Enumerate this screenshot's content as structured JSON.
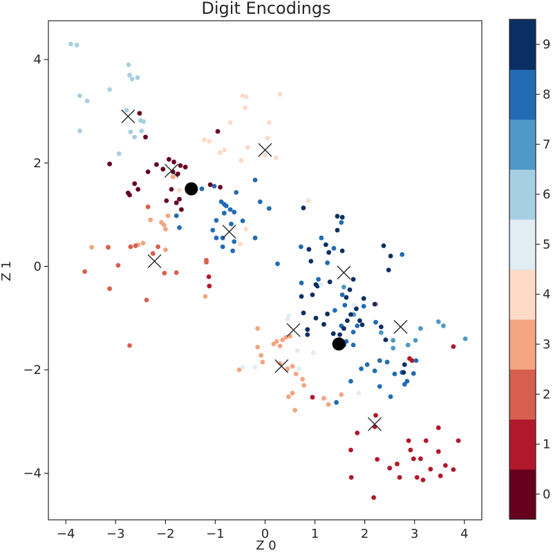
{
  "chart_data": {
    "type": "scatter",
    "title": "Digit Encodings",
    "xlabel": "Z 0",
    "ylabel": "Z 1",
    "xlim": [
      -4.35,
      4.35
    ],
    "ylim": [
      -4.9,
      4.75
    ],
    "xticks": [
      -4,
      -3,
      -2,
      -1,
      0,
      1,
      2,
      3,
      4
    ],
    "yticks": [
      4,
      2,
      0,
      -2,
      -4
    ],
    "xtick_labels": [
      "−4",
      "−3",
      "−2",
      "−1",
      "0",
      "1",
      "2",
      "3",
      "4"
    ],
    "ytick_labels": [
      "4",
      "2",
      "0",
      "−2",
      "−4"
    ],
    "colorbar": {
      "ticks": [
        "0",
        "1",
        "2",
        "3",
        "4",
        "5",
        "6",
        "7",
        "8",
        "9"
      ],
      "colors": [
        "#67001f",
        "#b2182b",
        "#d6604d",
        "#f4a582",
        "#fddbc7",
        "#e1ecf3",
        "#a7cfe4",
        "#4e98c8",
        "#236bb3",
        "#0b2f63"
      ]
    },
    "points": [
      [
        -3.9,
        4.3,
        6
      ],
      [
        -3.78,
        4.28,
        6
      ],
      [
        -3.72,
        3.3,
        6
      ],
      [
        -3.72,
        2.62,
        6
      ],
      [
        -3.57,
        3.2,
        6
      ],
      [
        -3.12,
        3.42,
        6
      ],
      [
        -2.93,
        2.18,
        6
      ],
      [
        -2.74,
        3.9,
        6
      ],
      [
        -2.7,
        2.6,
        6
      ],
      [
        -2.72,
        3.7,
        6
      ],
      [
        -2.67,
        3.62,
        6
      ],
      [
        -2.56,
        3.65,
        6
      ],
      [
        -2.62,
        2.5,
        6
      ],
      [
        -2.5,
        2.82,
        6
      ],
      [
        -2.44,
        2.8,
        6
      ],
      [
        -2.48,
        2.62,
        6
      ],
      [
        -2.78,
        3.02,
        6
      ],
      [
        -2.52,
        2.96,
        0
      ],
      [
        -2.4,
        2.5,
        0
      ],
      [
        -3.12,
        1.98,
        0
      ],
      [
        -2.75,
        1.42,
        0
      ],
      [
        -2.62,
        1.6,
        0
      ],
      [
        -2.55,
        1.49,
        0
      ],
      [
        -2.35,
        1.83,
        0
      ],
      [
        -2.18,
        1.97,
        0
      ],
      [
        -2.05,
        1.88,
        0
      ],
      [
        -1.93,
        2.07,
        0
      ],
      [
        -1.83,
        2.02,
        0
      ],
      [
        -1.85,
        1.83,
        0
      ],
      [
        -1.88,
        1.49,
        0
      ],
      [
        -1.78,
        1.23,
        0
      ],
      [
        -1.72,
        1.3,
        0
      ],
      [
        -1.68,
        1.1,
        0
      ],
      [
        -1.75,
        1.79,
        0
      ],
      [
        -1.98,
        1.27,
        0
      ],
      [
        -1.7,
        1.95,
        0
      ],
      [
        -1.6,
        1.92,
        0
      ],
      [
        -0.95,
        2.61,
        0
      ],
      [
        -0.9,
        1.53,
        0
      ],
      [
        -1.1,
        1.58,
        0
      ],
      [
        -2.72,
        1.38,
        0
      ],
      [
        -0.82,
        2.25,
        4
      ],
      [
        -0.7,
        2.78,
        4
      ],
      [
        -0.45,
        3.3,
        4
      ],
      [
        -0.38,
        3.28,
        4
      ],
      [
        -0.4,
        3.07,
        4
      ],
      [
        -1.22,
        2.45,
        4
      ],
      [
        -1.12,
        2.42,
        4
      ],
      [
        -0.9,
        2.2,
        4
      ],
      [
        -0.48,
        2.05,
        4
      ],
      [
        -0.35,
        2.3,
        4
      ],
      [
        0.0,
        2.15,
        4
      ],
      [
        0.05,
        2.48,
        4
      ],
      [
        0.22,
        2.1,
        4
      ],
      [
        0.08,
        2.78,
        4
      ],
      [
        0.3,
        3.33,
        4
      ],
      [
        0.87,
        1.27,
        4
      ],
      [
        -0.5,
        0.43,
        4
      ],
      [
        -0.38,
        0.72,
        4
      ],
      [
        -1.72,
        1.47,
        4
      ],
      [
        -2.0,
        0.72,
        3
      ],
      [
        -2.08,
        0.85,
        3
      ],
      [
        -2.03,
        0.8,
        3
      ],
      [
        -2.3,
        0.9,
        3
      ],
      [
        -1.95,
        0.98,
        3
      ],
      [
        -1.85,
        1.73,
        3
      ],
      [
        -3.48,
        0.37,
        3
      ],
      [
        -2.55,
        0.42,
        3
      ],
      [
        -2.45,
        0.45,
        3
      ],
      [
        -2.0,
        0.32,
        3
      ],
      [
        -1.2,
        -0.58,
        3
      ],
      [
        -0.52,
        -2.0,
        3
      ],
      [
        -0.15,
        -1.2,
        3
      ],
      [
        0.17,
        -1.5,
        3
      ],
      [
        0.23,
        -1.45,
        3
      ],
      [
        0.3,
        -1.88,
        3
      ],
      [
        0.35,
        -1.42,
        3
      ],
      [
        0.42,
        -1.37,
        3
      ],
      [
        0.5,
        -1.35,
        3
      ],
      [
        0.45,
        -1.98,
        3
      ],
      [
        0.55,
        -1.93,
        3
      ],
      [
        0.62,
        -2.08,
        3
      ],
      [
        0.55,
        -2.45,
        3
      ],
      [
        0.75,
        -2.18,
        3
      ],
      [
        0.78,
        -2.3,
        3
      ],
      [
        0.47,
        -2.52,
        3
      ],
      [
        1.18,
        -2.55,
        3
      ],
      [
        1.27,
        -2.67,
        3
      ],
      [
        1.53,
        -2.48,
        3
      ],
      [
        0.6,
        -2.78,
        3
      ],
      [
        -0.08,
        -1.72,
        3
      ],
      [
        -0.05,
        -1.85,
        3
      ],
      [
        2.23,
        -0.73,
        3
      ],
      [
        0.3,
        -1.54,
        3
      ],
      [
        -0.15,
        -1.56,
        3
      ],
      [
        -3.62,
        -0.1,
        2
      ],
      [
        -3.15,
        0.37,
        2
      ],
      [
        -3.12,
        -0.43,
        2
      ],
      [
        -2.95,
        0.02,
        2
      ],
      [
        -2.7,
        0.38,
        2
      ],
      [
        -2.6,
        0.4,
        2
      ],
      [
        -2.35,
        1.15,
        2
      ],
      [
        -2.25,
        0.25,
        2
      ],
      [
        -2.02,
        -0.13,
        2
      ],
      [
        -2.38,
        -0.65,
        2
      ],
      [
        -1.78,
        -0.12,
        2
      ],
      [
        -1.18,
        0.08,
        2
      ],
      [
        -2.72,
        -1.53,
        2
      ],
      [
        -1.18,
        0.12,
        2
      ],
      [
        -2.15,
        0.38,
        2
      ],
      [
        -1.13,
        -0.2,
        1
      ],
      [
        -1.12,
        -0.38,
        1
      ],
      [
        0.95,
        -2.53,
        1
      ],
      [
        2.22,
        -2.88,
        1
      ],
      [
        2.2,
        -3.1,
        1
      ],
      [
        1.85,
        -3.22,
        1
      ],
      [
        1.72,
        -3.55,
        1
      ],
      [
        2.25,
        -3.73,
        1
      ],
      [
        1.73,
        -4.08,
        1
      ],
      [
        2.18,
        -4.47,
        1
      ],
      [
        2.5,
        -3.9,
        1
      ],
      [
        2.65,
        -3.82,
        1
      ],
      [
        2.7,
        -4.08,
        1
      ],
      [
        2.88,
        -3.37,
        1
      ],
      [
        2.92,
        -3.55,
        1
      ],
      [
        2.98,
        -3.72,
        1
      ],
      [
        3.12,
        -3.72,
        1
      ],
      [
        3.05,
        -4.08,
        1
      ],
      [
        3.17,
        -4.13,
        1
      ],
      [
        3.23,
        -3.37,
        1
      ],
      [
        3.32,
        -3.92,
        1
      ],
      [
        3.48,
        -3.58,
        1
      ],
      [
        3.48,
        -3.12,
        1
      ],
      [
        3.52,
        -4.05,
        1
      ],
      [
        3.62,
        -3.85,
        1
      ],
      [
        3.78,
        -3.93,
        1
      ],
      [
        3.78,
        -1.55,
        1
      ],
      [
        3.88,
        -3.37,
        1
      ],
      [
        2.9,
        -1.78,
        1
      ],
      [
        2.95,
        -1.82,
        1
      ],
      [
        -0.62,
        1.05,
        8
      ],
      [
        -0.7,
        1.1,
        8
      ],
      [
        -0.78,
        1.17,
        8
      ],
      [
        -0.82,
        1.2,
        8
      ],
      [
        -0.88,
        1.25,
        8
      ],
      [
        -0.82,
        1.03,
        8
      ],
      [
        -0.98,
        0.89,
        8
      ],
      [
        -1.05,
        0.7,
        8
      ],
      [
        -0.58,
        1.43,
        8
      ],
      [
        -0.68,
        0.82,
        8
      ],
      [
        -0.45,
        0.88,
        8
      ],
      [
        -0.85,
        0.55,
        8
      ],
      [
        -0.98,
        0.55,
        8
      ],
      [
        -0.62,
        0.48,
        8
      ],
      [
        -0.65,
        0.3,
        8
      ],
      [
        -1.27,
        1.5,
        8
      ],
      [
        -1.02,
        1.55,
        8
      ],
      [
        -0.2,
        1.67,
        8
      ],
      [
        -0.1,
        1.25,
        8
      ],
      [
        0.08,
        1.12,
        8
      ],
      [
        -0.2,
        0.55,
        8
      ],
      [
        -1.78,
        0.98,
        8
      ],
      [
        -1.72,
        0.75,
        8
      ],
      [
        -0.85,
        0.38,
        8
      ],
      [
        0.25,
        0.05,
        8
      ],
      [
        0.72,
        0.38,
        8
      ],
      [
        1.13,
        0.55,
        8
      ],
      [
        1.38,
        0.35,
        8
      ],
      [
        1.53,
        0.85,
        8
      ],
      [
        1.25,
        0.07,
        8
      ],
      [
        1.07,
        -0.25,
        8
      ],
      [
        1.55,
        -0.55,
        8
      ],
      [
        1.4,
        -0.85,
        8
      ],
      [
        1.6,
        -0.75,
        8
      ],
      [
        1.85,
        -1.15,
        8
      ],
      [
        1.53,
        -1.15,
        8
      ],
      [
        1.77,
        -1.27,
        8
      ],
      [
        1.77,
        -1.52,
        8
      ],
      [
        1.72,
        -2.22,
        8
      ],
      [
        1.93,
        -1.98,
        8
      ],
      [
        2.05,
        -1.9,
        8
      ],
      [
        2.3,
        -1.82,
        8
      ],
      [
        2.2,
        -2.02,
        8
      ],
      [
        2.45,
        -1.85,
        8
      ],
      [
        2.3,
        -2.32,
        8
      ],
      [
        2.52,
        -2.52,
        8
      ],
      [
        2.6,
        -2.08,
        8
      ],
      [
        2.75,
        -2.05,
        8
      ],
      [
        2.8,
        -2.28,
        8
      ],
      [
        2.85,
        -2.22,
        8
      ],
      [
        2.98,
        -2.07,
        8
      ],
      [
        3.03,
        -1.82,
        8
      ],
      [
        2.75,
        0.23,
        8
      ],
      [
        2.22,
        -1.08,
        8
      ],
      [
        1.98,
        -0.77,
        8
      ],
      [
        1.43,
        -2.63,
        8
      ],
      [
        1.63,
        -1.45,
        8
      ],
      [
        0.73,
        -0.32,
        8
      ],
      [
        2.57,
        -1.58,
        7
      ],
      [
        2.87,
        -1.52,
        7
      ],
      [
        3.02,
        -1.43,
        7
      ],
      [
        3.12,
        -1.2,
        7
      ],
      [
        3.48,
        -1.07,
        7
      ],
      [
        3.58,
        -1.15,
        7
      ],
      [
        4.02,
        -1.4,
        7
      ],
      [
        2.57,
        -1.43,
        7
      ],
      [
        1.58,
        -0.4,
        7
      ],
      [
        1.78,
        -0.93,
        7
      ],
      [
        2.33,
        -1.28,
        7
      ],
      [
        0.77,
        1.13,
        9
      ],
      [
        0.88,
        0.33,
        9
      ],
      [
        1.22,
        0.42,
        9
      ],
      [
        1.28,
        0.27,
        9
      ],
      [
        1.45,
        0.97,
        9
      ],
      [
        1.55,
        0.95,
        9
      ],
      [
        1.45,
        0.7,
        9
      ],
      [
        1.55,
        0.3,
        9
      ],
      [
        0.92,
        0.1,
        9
      ],
      [
        1.3,
        -0.3,
        9
      ],
      [
        1.05,
        -0.38,
        9
      ],
      [
        1.02,
        -0.35,
        9
      ],
      [
        0.95,
        -0.55,
        9
      ],
      [
        0.77,
        -0.9,
        9
      ],
      [
        1.02,
        -1.0,
        9
      ],
      [
        0.85,
        -1.22,
        9
      ],
      [
        1.18,
        -1.12,
        9
      ],
      [
        0.85,
        -1.32,
        9
      ],
      [
        1.25,
        -0.92,
        9
      ],
      [
        1.37,
        -1.3,
        9
      ],
      [
        1.5,
        -1.32,
        9
      ],
      [
        1.47,
        -1.5,
        9
      ],
      [
        1.58,
        -1.2,
        9
      ],
      [
        1.58,
        -1.52,
        9
      ],
      [
        1.65,
        -1.05,
        9
      ],
      [
        1.83,
        -0.82,
        9
      ],
      [
        1.9,
        -1.05,
        9
      ],
      [
        1.95,
        -1.13,
        9
      ],
      [
        1.98,
        -0.62,
        9
      ],
      [
        2.2,
        -0.73,
        9
      ],
      [
        2.33,
        -1.17,
        9
      ],
      [
        2.42,
        -1.42,
        9
      ],
      [
        2.38,
        0.4,
        9
      ],
      [
        2.52,
        0.2,
        9
      ],
      [
        2.48,
        -0.07,
        9
      ],
      [
        1.77,
        -0.25,
        9
      ],
      [
        1.7,
        -0.45,
        9
      ],
      [
        1.63,
        -0.6,
        9
      ],
      [
        0.73,
        -0.58,
        9
      ],
      [
        1.72,
        -0.93,
        9
      ],
      [
        2.8,
        -1.9,
        9
      ],
      [
        2.78,
        -2.05,
        9
      ],
      [
        -0.2,
        -1.95,
        5
      ],
      [
        0.45,
        -1.02,
        5
      ],
      [
        0.65,
        -1.63,
        5
      ],
      [
        0.68,
        -1.98,
        5
      ],
      [
        0.97,
        -1.67,
        5
      ],
      [
        1.78,
        -0.75,
        5
      ],
      [
        1.12,
        -0.35,
        5
      ],
      [
        0.48,
        -0.95,
        5
      ],
      [
        -0.45,
        -1.95,
        5
      ],
      [
        1.88,
        -2.45,
        5
      ]
    ],
    "centroids": [
      [
        -2.75,
        2.9
      ],
      [
        -1.88,
        1.85
      ],
      [
        0.0,
        2.25
      ],
      [
        -0.72,
        0.67
      ],
      [
        -2.22,
        0.1
      ],
      [
        1.58,
        -0.12
      ],
      [
        0.57,
        -1.23
      ],
      [
        0.33,
        -1.93
      ],
      [
        2.72,
        -1.17
      ],
      [
        2.2,
        -3.05
      ]
    ],
    "highlights": [
      [
        -1.48,
        1.5
      ],
      [
        1.48,
        -1.5
      ]
    ]
  }
}
